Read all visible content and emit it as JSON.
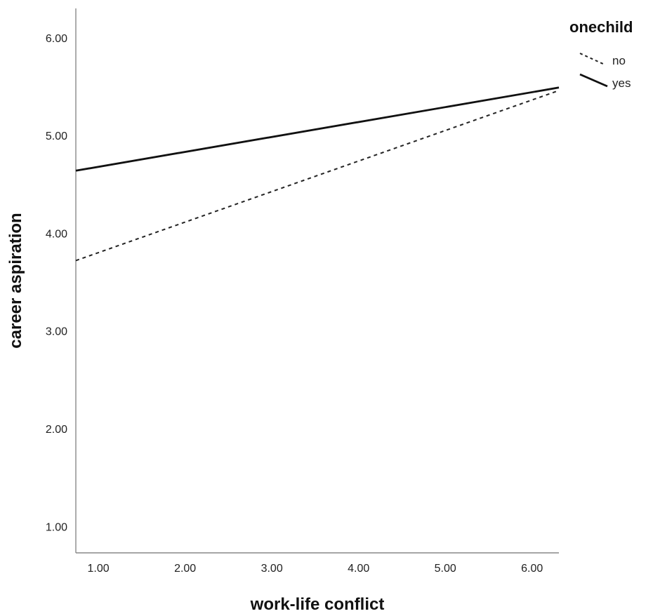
{
  "chart_data": {
    "type": "line",
    "title": "",
    "xlabel": "work-life conflict",
    "ylabel": "career aspiration",
    "xlim": [
      0.74,
      6.31
    ],
    "ylim": [
      0.73,
      6.3
    ],
    "x_ticks": [
      {
        "value": 1,
        "label": "1.00"
      },
      {
        "value": 2,
        "label": "2.00"
      },
      {
        "value": 3,
        "label": "3.00"
      },
      {
        "value": 4,
        "label": "4.00"
      },
      {
        "value": 5,
        "label": "5.00"
      },
      {
        "value": 6,
        "label": "6.00"
      }
    ],
    "y_ticks": [
      {
        "value": 1,
        "label": "1.00"
      },
      {
        "value": 2,
        "label": "2.00"
      },
      {
        "value": 3,
        "label": "3.00"
      },
      {
        "value": 4,
        "label": "4.00"
      },
      {
        "value": 5,
        "label": "5.00"
      },
      {
        "value": 6,
        "label": "6.00"
      }
    ],
    "grid": false,
    "legend": {
      "title": "onechild",
      "position": "top-right"
    },
    "series": [
      {
        "name": "no",
        "style": "dotted",
        "color": "#222222",
        "x": [
          0.74,
          6.31
        ],
        "y": [
          3.72,
          5.46
        ]
      },
      {
        "name": "yes",
        "style": "solid",
        "color": "#111111",
        "x": [
          0.74,
          6.31
        ],
        "y": [
          4.64,
          5.49
        ]
      }
    ]
  }
}
